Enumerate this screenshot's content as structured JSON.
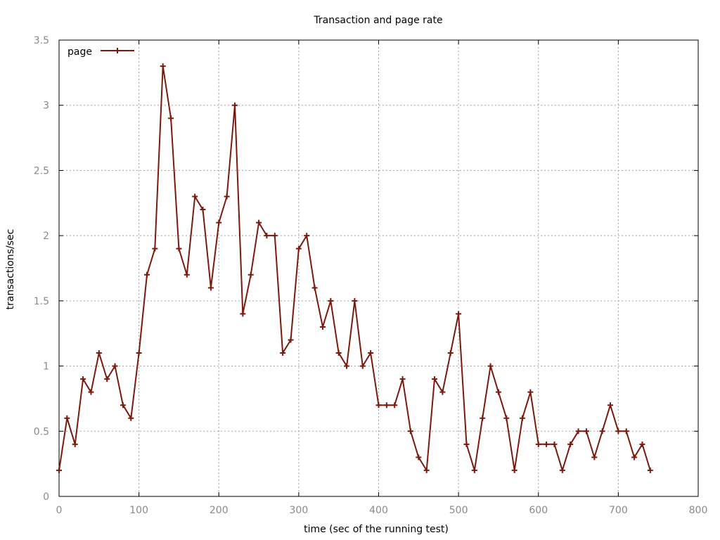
{
  "chart_data": {
    "type": "line",
    "title": "Transaction and page rate",
    "xlabel": "time (sec of the running test)",
    "ylabel": "transactions/sec",
    "xlim": [
      0,
      800
    ],
    "ylim": [
      0,
      3.5
    ],
    "x_ticks": [
      "0",
      "100",
      "200",
      "300",
      "400",
      "500",
      "600",
      "700",
      "800"
    ],
    "y_ticks": [
      "0",
      "0.5",
      "1",
      "1.5",
      "2",
      "2.5",
      "3",
      "3.5"
    ],
    "x_tick_values": [
      0,
      100,
      200,
      300,
      400,
      500,
      600,
      700,
      800
    ],
    "y_tick_values": [
      0,
      0.5,
      1,
      1.5,
      2,
      2.5,
      3,
      3.5
    ],
    "grid": true,
    "legend_position": "top-left",
    "series": [
      {
        "name": "page",
        "color": "#7a1a0e",
        "marker": "plus",
        "x": [
          0,
          10,
          20,
          30,
          40,
          50,
          60,
          70,
          80,
          90,
          100,
          110,
          120,
          130,
          140,
          150,
          160,
          170,
          180,
          190,
          200,
          210,
          220,
          230,
          240,
          250,
          260,
          270,
          280,
          290,
          300,
          310,
          320,
          330,
          340,
          350,
          360,
          370,
          380,
          390,
          400,
          410,
          420,
          430,
          440,
          450,
          460,
          470,
          480,
          490,
          500,
          510,
          520,
          530,
          540,
          550,
          560,
          570,
          580,
          590,
          600,
          610,
          620,
          630,
          640,
          650,
          660,
          670,
          680,
          690,
          700,
          710,
          720,
          730,
          740
        ],
        "y": [
          0.2,
          0.6,
          0.4,
          0.9,
          0.8,
          1.1,
          0.9,
          1.0,
          0.7,
          0.6,
          1.1,
          1.7,
          1.9,
          3.3,
          2.9,
          1.9,
          1.7,
          2.3,
          2.2,
          1.6,
          2.1,
          2.3,
          3.0,
          1.4,
          1.7,
          2.1,
          2.0,
          2.0,
          1.1,
          1.2,
          1.9,
          2.0,
          1.6,
          1.3,
          1.5,
          1.1,
          1.0,
          1.5,
          1.0,
          1.1,
          0.7,
          0.7,
          0.7,
          0.9,
          0.5,
          0.3,
          0.2,
          0.9,
          0.8,
          1.1,
          1.4,
          0.4,
          0.2,
          0.6,
          1.0,
          0.8,
          0.6,
          0.2,
          0.6,
          0.8,
          0.4,
          0.4,
          0.4,
          0.2,
          0.4,
          0.5,
          0.5,
          0.3,
          0.5,
          0.7,
          0.5,
          0.5,
          0.3,
          0.4,
          0.2
        ]
      }
    ]
  }
}
